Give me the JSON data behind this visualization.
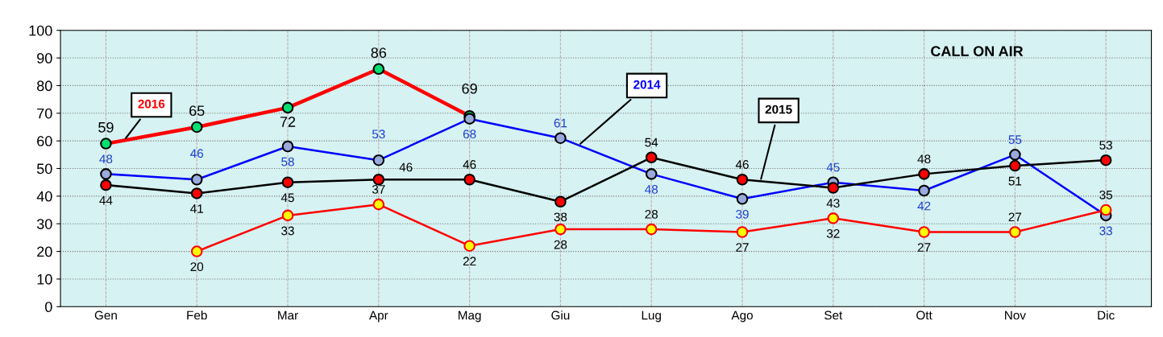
{
  "chart_data": {
    "type": "line",
    "title": "CALL ON AIR",
    "categories": [
      "Gen",
      "Feb",
      "Mar",
      "Apr",
      "Mag",
      "Giu",
      "Lug",
      "Ago",
      "Set",
      "Ott",
      "Nov",
      "Dic"
    ],
    "series": [
      {
        "name": "2016",
        "color": "#ff0000",
        "values": [
          59,
          65,
          72,
          86,
          69,
          null,
          null,
          null,
          null,
          null,
          null,
          null
        ]
      },
      {
        "name": "2014",
        "color": "#0000ff",
        "values": [
          48,
          46,
          58,
          53,
          68,
          61,
          48,
          39,
          45,
          42,
          55,
          33
        ]
      },
      {
        "name": "2015",
        "color": "#000000",
        "values": [
          44,
          41,
          45,
          46,
          46,
          38,
          54,
          46,
          43,
          48,
          51,
          53
        ]
      },
      {
        "color": "#ff0000",
        "values": [
          null,
          20,
          33,
          37,
          22,
          28,
          28,
          27,
          32,
          27,
          27,
          35
        ]
      }
    ],
    "ylim": [
      0,
      100
    ],
    "yticks": [
      0,
      10,
      20,
      30,
      40,
      50,
      60,
      70,
      80,
      90,
      100
    ],
    "grid": true,
    "legend": false,
    "marker": "circle",
    "line_style": "solid",
    "data_labels": true
  }
}
